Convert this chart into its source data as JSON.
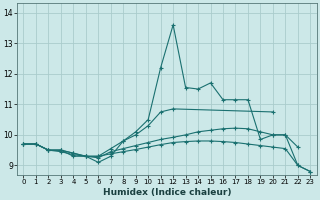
{
  "title": "",
  "xlabel": "Humidex (Indice chaleur)",
  "bg_color": "#cce8e8",
  "grid_color": "#aacccc",
  "line_color": "#1a7070",
  "xlim": [
    -0.5,
    23.5
  ],
  "ylim": [
    8.7,
    14.3
  ],
  "xticks": [
    0,
    1,
    2,
    3,
    4,
    5,
    6,
    7,
    8,
    9,
    10,
    11,
    12,
    13,
    14,
    15,
    16,
    17,
    18,
    19,
    20,
    21,
    22,
    23
  ],
  "yticks": [
    9,
    10,
    11,
    12,
    13
  ],
  "ytick_extra": 14,
  "lines": [
    {
      "x": [
        0,
        1,
        2,
        3,
        4,
        5,
        6,
        7,
        8,
        9,
        10,
        11,
        12,
        13,
        14,
        15,
        16,
        17,
        18,
        19,
        20,
        21,
        22
      ],
      "y": [
        9.7,
        9.7,
        9.5,
        9.5,
        9.4,
        9.3,
        9.1,
        9.3,
        9.8,
        10.1,
        10.5,
        12.2,
        13.6,
        11.55,
        11.5,
        11.7,
        11.15,
        11.15,
        11.15,
        9.85,
        10.0,
        10.0,
        9.6
      ]
    },
    {
      "x": [
        0,
        1,
        2,
        3,
        4,
        5,
        6,
        7,
        8,
        9,
        10,
        11,
        12,
        20
      ],
      "y": [
        9.7,
        9.7,
        9.5,
        9.5,
        9.4,
        9.3,
        9.3,
        9.55,
        9.8,
        10.0,
        10.3,
        10.75,
        10.85,
        10.75
      ]
    },
    {
      "x": [
        0,
        1,
        2,
        3,
        4,
        5,
        6,
        7,
        8,
        9,
        10,
        11,
        12,
        13,
        14,
        15,
        16,
        17,
        18,
        19,
        20,
        21,
        22,
        23
      ],
      "y": [
        9.7,
        9.7,
        9.5,
        9.5,
        9.3,
        9.3,
        9.25,
        9.45,
        9.55,
        9.65,
        9.75,
        9.85,
        9.92,
        10.0,
        10.1,
        10.15,
        10.2,
        10.22,
        10.2,
        10.1,
        10.0,
        10.0,
        9.0,
        8.8
      ]
    },
    {
      "x": [
        0,
        1,
        2,
        3,
        4,
        5,
        6,
        7,
        8,
        9,
        10,
        11,
        12,
        13,
        14,
        15,
        16,
        17,
        18,
        19,
        20,
        21,
        22,
        23
      ],
      "y": [
        9.7,
        9.7,
        9.5,
        9.45,
        9.35,
        9.3,
        9.3,
        9.38,
        9.45,
        9.52,
        9.6,
        9.68,
        9.75,
        9.78,
        9.8,
        9.8,
        9.78,
        9.75,
        9.7,
        9.65,
        9.6,
        9.55,
        9.0,
        8.8
      ]
    }
  ]
}
